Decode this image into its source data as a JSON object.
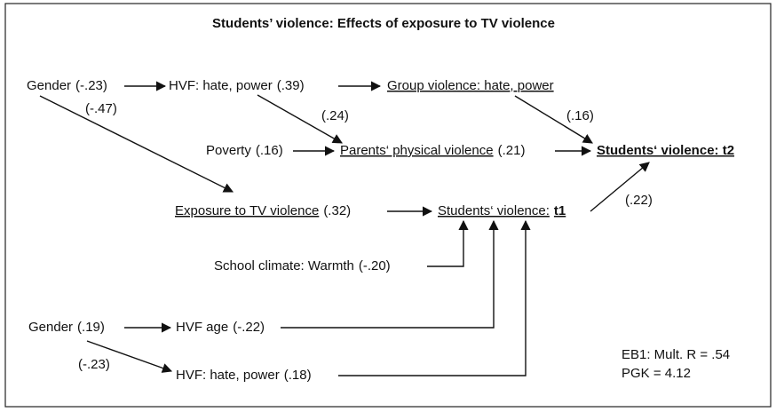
{
  "title": "Students’ violence: Effects of exposure to TV violence",
  "nodes": [
    {
      "label": "Gender",
      "coefficient": "(-.23)"
    },
    {
      "label": "HVF: hate, power",
      "coefficient": "(.39)"
    },
    {
      "label": "Group violence: hate, power"
    },
    {
      "label": "Poverty",
      "coefficient": "(.16)"
    },
    {
      "label": "Parents‘ physical violence",
      "coefficient": "(.21)"
    },
    {
      "label": "Students‘ violence: t2"
    },
    {
      "label": "Exposure to TV violence",
      "coefficient": "(.32)"
    },
    {
      "label": "Students‘ violence:",
      "emphasis": "t1"
    },
    {
      "label": "School climate: Warmth",
      "coefficient": "(-.20)"
    },
    {
      "label": "Gender",
      "coefficient": "(.19)"
    },
    {
      "label": "HVF age",
      "coefficient": "(-.22)"
    },
    {
      "label": "HVF: hate, power",
      "coefficient": "(.18)"
    }
  ],
  "edge_labels": [
    "(-.47)",
    "(.24)",
    "(.16)",
    "(.22)",
    "(-.23)"
  ],
  "notes": [
    "EB1: Mult. R = .54",
    "PGK = 4.12"
  ]
}
